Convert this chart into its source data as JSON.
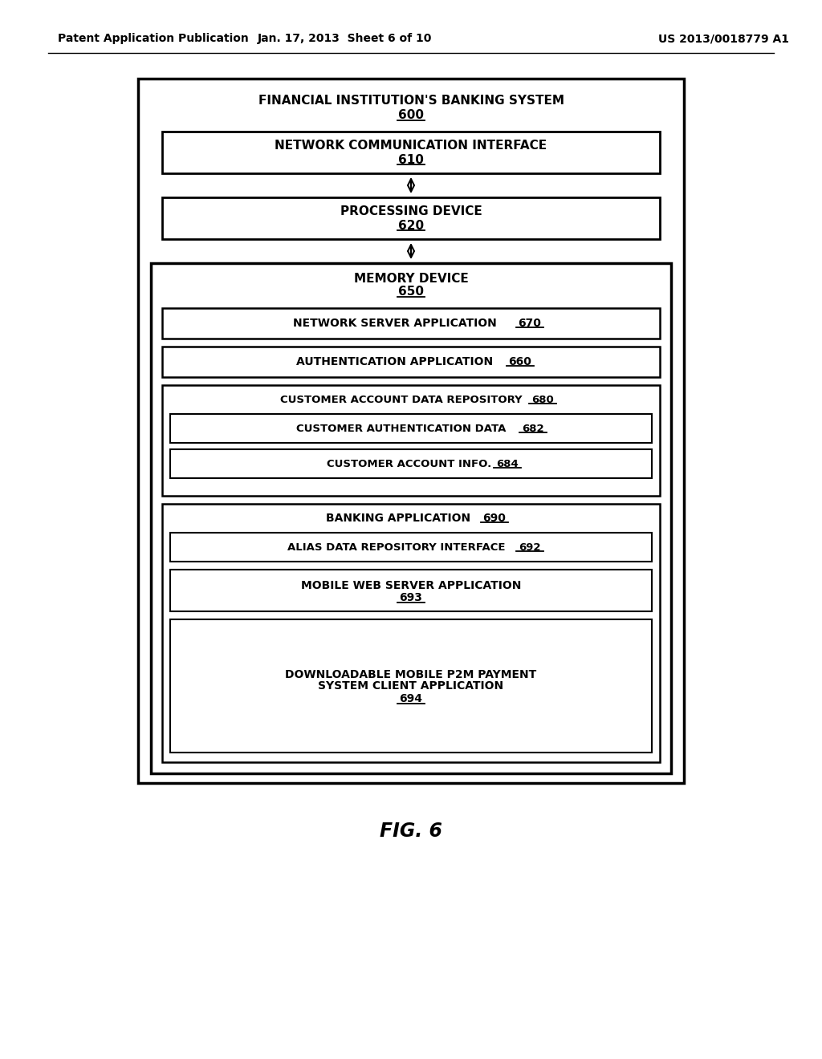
{
  "header_left": "Patent Application Publication",
  "header_mid": "Jan. 17, 2013  Sheet 6 of 10",
  "header_right": "US 2013/0018779 A1",
  "fig_label": "FIG. 6",
  "outer_box_label": "FINANCIAL INSTITUTION'S BANKING SYSTEM",
  "outer_box_num": "600",
  "box_610_label": "NETWORK COMMUNICATION INTERFACE",
  "box_610_num": "610",
  "box_620_label": "PROCESSING DEVICE",
  "box_620_num": "620",
  "memory_box_label": "MEMORY DEVICE",
  "memory_box_num": "650",
  "box_670_label": "NETWORK SERVER APPLICATION ",
  "box_670_num": "670",
  "box_660_label": "AUTHENTICATION APPLICATION ",
  "box_660_num": "660",
  "cadr_box_label": "CUSTOMER ACCOUNT DATA REPOSITORY ",
  "cadr_box_num": "680",
  "box_682_label": "CUSTOMER AUTHENTICATION DATA ",
  "box_682_num": "682",
  "box_684_label": "CUSTOMER ACCOUNT INFO. ",
  "box_684_num": "684",
  "banking_box_label": "BANKING APPLICATION ",
  "banking_box_num": "690",
  "box_692_label": "ALIAS DATA REPOSITORY INTERFACE  ",
  "box_692_num": "692",
  "box_693_label": "MOBILE WEB SERVER APPLICATION",
  "box_693_num": "693",
  "box_694_line1": "DOWNLOADABLE MOBILE P2M PAYMENT",
  "box_694_line2": "SYSTEM CLIENT APPLICATION",
  "box_694_num": "694",
  "bg_color": "#ffffff",
  "line_color": "#000000"
}
